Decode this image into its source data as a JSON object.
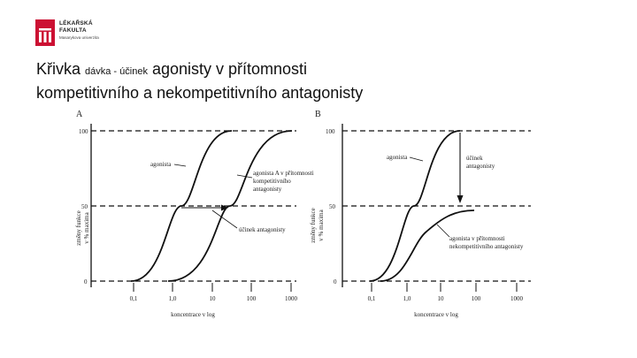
{
  "logo": {
    "line1": "LÉKAŘSKÁ",
    "line2": "FAKULTA",
    "line3": "Masarykova univerzita",
    "accent_color": "#cc1133"
  },
  "title": {
    "part1": "Křivka ",
    "part2_small": "dávka - účinek",
    "part3": " agonisty v přítomnosti",
    "line2": "kompetitivního a nekompetitivního antagonisty"
  },
  "panel_a": {
    "letter": "A",
    "ylabel_line1": "změny funkce",
    "ylabel_line2": "v % maxima",
    "xlabel": "koncentrace v log",
    "x_ticks": [
      "0,1",
      "1,0",
      "10",
      "100",
      "1000"
    ],
    "y_ticks": [
      "0",
      "50",
      "100"
    ],
    "curve_label_agonist": "agonista",
    "curve_label_competitive_line1": "agonista A v přítomnosti",
    "curve_label_competitive_line2": "kompetitivního",
    "curve_label_competitive_line3": "antagonisty",
    "effect_label": "účinek antagonisty"
  },
  "panel_b": {
    "letter": "B",
    "ylabel_line1": "změny funkce",
    "ylabel_line2": "v % maxima",
    "xlabel": "koncentrace v log",
    "x_ticks": [
      "0,1",
      "1,0",
      "10",
      "100",
      "1000"
    ],
    "y_ticks": [
      "0",
      "50",
      "100"
    ],
    "curve_label_agonist": "agonista",
    "effect_label_line1": "účinek",
    "effect_label_line2": "antagonisty",
    "curve_label_noncompetitive_line1": "agonista v přítomnosti",
    "curve_label_noncompetitive_line2": "nekompetitivního antagonisty"
  }
}
